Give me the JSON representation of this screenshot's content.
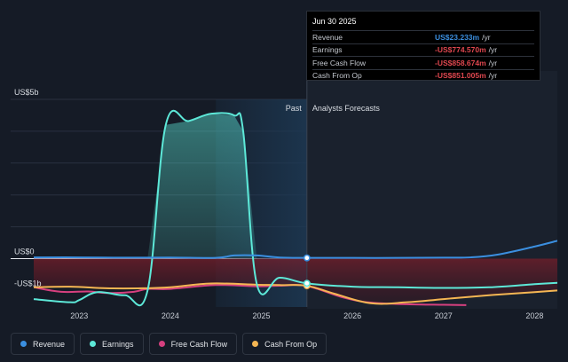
{
  "tooltip": {
    "date": "Jun 30 2025",
    "rows": [
      {
        "label": "Revenue",
        "value": "US$23.233m",
        "unit": "/yr",
        "color": "#3b8fe0"
      },
      {
        "label": "Earnings",
        "value": "-US$774.570m",
        "unit": "/yr",
        "color": "#e0474f"
      },
      {
        "label": "Free Cash Flow",
        "value": "-US$858.674m",
        "unit": "/yr",
        "color": "#e0474f"
      },
      {
        "label": "Cash From Op",
        "value": "-US$851.005m",
        "unit": "/yr",
        "color": "#e0474f"
      }
    ]
  },
  "legend": [
    {
      "label": "Revenue",
      "color": "#3b8fe0"
    },
    {
      "label": "Earnings",
      "color": "#5de8d8"
    },
    {
      "label": "Free Cash Flow",
      "color": "#d6407f"
    },
    {
      "label": "Cash From Op",
      "color": "#f5b653"
    }
  ],
  "chart_data": {
    "type": "line",
    "y_tick_labels": [
      {
        "label": "US$5b",
        "value": 5000
      },
      {
        "label": "US$0",
        "value": 0
      },
      {
        "label": "-US$1b",
        "value": -1000
      }
    ],
    "ylim": [
      -1500,
      5000
    ],
    "xlim": [
      2022.5,
      2028.25
    ],
    "x_ticks": [
      "2023",
      "2024",
      "2025",
      "2026",
      "2027",
      "2028"
    ],
    "past_label": "Past",
    "forecast_label": "Analysts Forecasts",
    "divider_x": 2025.5,
    "highlight_start": 2024.5,
    "series": [
      {
        "name": "Revenue",
        "color": "#3b8fe0",
        "points": [
          [
            2022.5,
            40
          ],
          [
            2023.0,
            40
          ],
          [
            2023.5,
            30
          ],
          [
            2024.0,
            35
          ],
          [
            2024.5,
            25
          ],
          [
            2024.7,
            100
          ],
          [
            2024.95,
            100
          ],
          [
            2025.2,
            35
          ],
          [
            2025.5,
            23
          ],
          [
            2026.0,
            23
          ],
          [
            2026.5,
            23
          ],
          [
            2027.0,
            30
          ],
          [
            2027.3,
            40
          ],
          [
            2027.6,
            130
          ],
          [
            2028.0,
            380
          ],
          [
            2028.25,
            560
          ]
        ]
      },
      {
        "name": "Earnings",
        "color": "#5de8d8",
        "points": [
          [
            2022.5,
            -1270
          ],
          [
            2022.9,
            -1370
          ],
          [
            2023.0,
            -1300
          ],
          [
            2023.2,
            -1050
          ],
          [
            2023.5,
            -1150
          ],
          [
            2023.75,
            -1000
          ],
          [
            2023.95,
            4200
          ],
          [
            2024.2,
            4320
          ],
          [
            2024.45,
            4550
          ],
          [
            2024.7,
            4500
          ],
          [
            2024.8,
            4000
          ],
          [
            2024.95,
            -800
          ],
          [
            2025.2,
            -600
          ],
          [
            2025.5,
            -775
          ],
          [
            2026.0,
            -880
          ],
          [
            2026.5,
            -900
          ],
          [
            2027.0,
            -920
          ],
          [
            2027.5,
            -900
          ],
          [
            2028.0,
            -800
          ],
          [
            2028.25,
            -760
          ]
        ]
      },
      {
        "name": "Free Cash Flow",
        "color": "#d6407f",
        "points": [
          [
            2022.5,
            -900
          ],
          [
            2022.8,
            -1040
          ],
          [
            2023.1,
            -1030
          ],
          [
            2023.3,
            -1080
          ],
          [
            2023.6,
            -1040
          ],
          [
            2023.75,
            -950
          ],
          [
            2024.0,
            -950
          ],
          [
            2024.5,
            -830
          ],
          [
            2024.95,
            -870
          ],
          [
            2025.2,
            -850
          ],
          [
            2025.5,
            -859
          ],
          [
            2025.9,
            -1220
          ],
          [
            2026.2,
            -1380
          ],
          [
            2026.6,
            -1430
          ],
          [
            2027.0,
            -1450
          ],
          [
            2027.25,
            -1460
          ]
        ]
      },
      {
        "name": "Cash From Op",
        "color": "#f5b653",
        "points": [
          [
            2022.5,
            -900
          ],
          [
            2022.9,
            -880
          ],
          [
            2023.3,
            -930
          ],
          [
            2023.7,
            -930
          ],
          [
            2024.0,
            -900
          ],
          [
            2024.45,
            -780
          ],
          [
            2024.95,
            -820
          ],
          [
            2025.2,
            -830
          ],
          [
            2025.5,
            -851
          ],
          [
            2025.8,
            -1100
          ],
          [
            2026.2,
            -1400
          ],
          [
            2026.6,
            -1370
          ],
          [
            2027.0,
            -1270
          ],
          [
            2027.5,
            -1150
          ],
          [
            2028.0,
            -1050
          ],
          [
            2028.25,
            -1000
          ]
        ]
      }
    ]
  }
}
